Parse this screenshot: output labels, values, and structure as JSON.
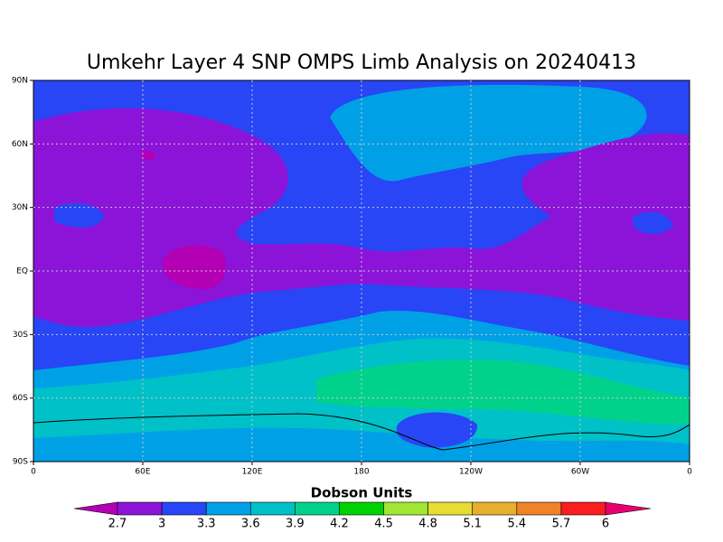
{
  "chart_data": {
    "type": "map",
    "title": "Umkehr Layer 4 SNP OMPS Limb Analysis on 20240413",
    "xlim": [
      0,
      360
    ],
    "xticks": [
      0,
      {
        "value": 60,
        "label": "60E"
      },
      {
        "value": 120,
        "label": "120E"
      },
      180,
      {
        "value": 240,
        "label": "120W"
      },
      {
        "value": 300,
        "label": "60W"
      },
      {
        "value": 360,
        "label": "0"
      }
    ],
    "ylim": [
      -90,
      90
    ],
    "yticks": [
      {
        "value": -90,
        "label": "90S"
      },
      {
        "value": -60,
        "label": "60S"
      },
      {
        "value": -30,
        "label": "30S"
      },
      {
        "value": 0,
        "label": "EQ"
      },
      {
        "value": 30,
        "label": "30N"
      },
      {
        "value": 60,
        "label": "60N"
      },
      {
        "value": 90,
        "label": "90N"
      }
    ],
    "grid": true,
    "colorbar": {
      "label": "Dobson Units",
      "levels": [
        2.7,
        3,
        3.3,
        3.6,
        3.9,
        4.2,
        4.5,
        4.8,
        5.1,
        5.4,
        5.7,
        6
      ],
      "colors": [
        "#b400b4",
        "#8c14d8",
        "#2846f5",
        "#00a0e6",
        "#00c0c8",
        "#00d28c",
        "#00d200",
        "#a0e632",
        "#e6dc32",
        "#e6af2d",
        "#f08228",
        "#fa1e1e",
        "#e6006e"
      ]
    }
  }
}
